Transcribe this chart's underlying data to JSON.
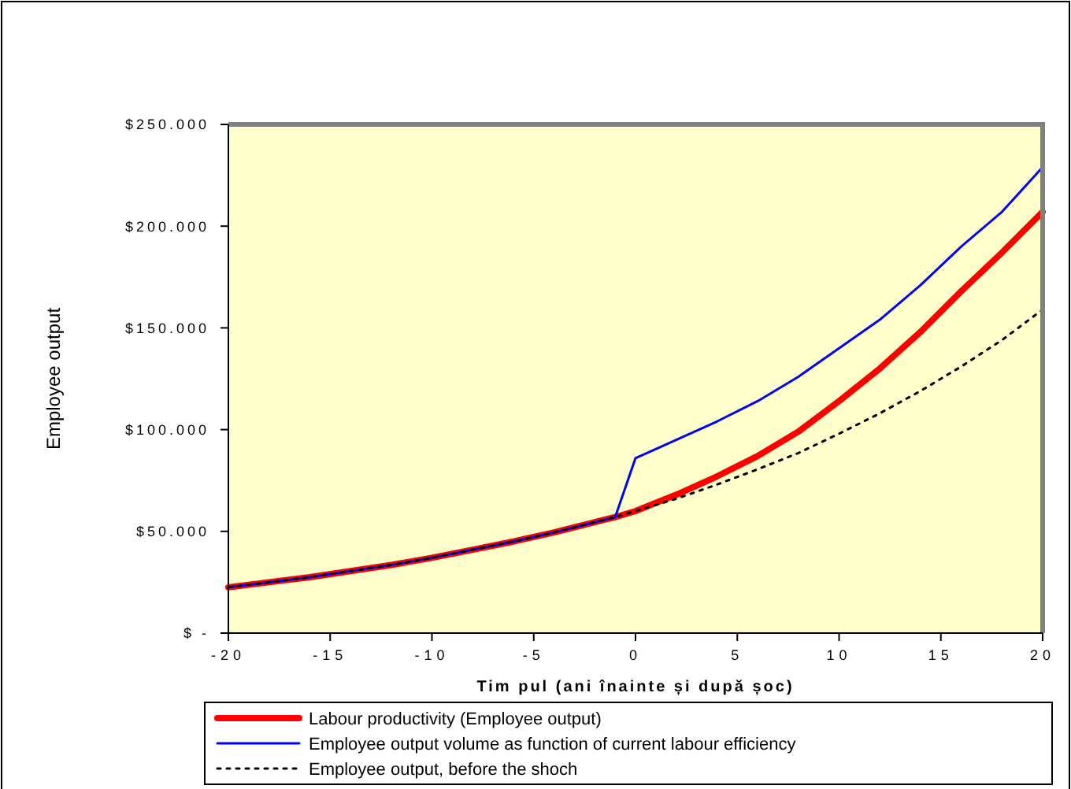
{
  "chart_data": {
    "type": "line",
    "xlabel": "Tim pul (ani înainte și după șoc)",
    "ylabel": "Employee output",
    "xlim": [
      -20,
      20
    ],
    "xticks": [
      -20,
      -15,
      -10,
      -5,
      0,
      5,
      10,
      15,
      20
    ],
    "ylim": [
      0,
      250000
    ],
    "yticks": [
      {
        "value": 0,
        "label": "$ -"
      },
      {
        "value": 50000,
        "label": "$50.000"
      },
      {
        "value": 100000,
        "label": "$100.000"
      },
      {
        "value": 150000,
        "label": "$150.000"
      },
      {
        "value": 200000,
        "label": "$200.000"
      },
      {
        "value": 250000,
        "label": "$250.000"
      }
    ],
    "grid": false,
    "legend": "bottom",
    "series": [
      {
        "name": "Labour productivity (Employee output)",
        "color": "#ff0000",
        "x": [
          -20,
          -18,
          -16,
          -14,
          -12,
          -10,
          -8,
          -6,
          -4,
          -2,
          -1,
          0,
          2,
          4,
          6,
          8,
          10,
          12,
          14,
          16,
          18,
          20
        ],
        "values": [
          22500,
          25000,
          27500,
          30500,
          33500,
          37000,
          41000,
          45000,
          49500,
          54500,
          57000,
          60000,
          68000,
          77000,
          87000,
          99000,
          114000,
          130000,
          148000,
          168000,
          187000,
          207000
        ]
      },
      {
        "name": "Employee output volume as function of current labour efficiency",
        "color": "#0000ff",
        "x": [
          -20,
          -18,
          -16,
          -14,
          -12,
          -10,
          -8,
          -6,
          -4,
          -2,
          -1,
          0,
          2,
          4,
          6,
          8,
          10,
          12,
          14,
          16,
          18,
          20
        ],
        "values": [
          22500,
          25000,
          27500,
          30500,
          33500,
          37000,
          41000,
          45000,
          49500,
          54500,
          57000,
          86000,
          95000,
          104000,
          114000,
          126000,
          140000,
          154000,
          171000,
          190000,
          207000,
          229000
        ]
      },
      {
        "name": "Employee output, before the shoch",
        "color": "#000000",
        "line_style": "dotted",
        "x": [
          -20,
          -18,
          -16,
          -14,
          -12,
          -10,
          -8,
          -6,
          -4,
          -2,
          -1,
          0,
          2,
          4,
          6,
          8,
          10,
          12,
          14,
          16,
          18,
          20
        ],
        "values": [
          22500,
          25000,
          27500,
          30500,
          33500,
          37000,
          41000,
          45000,
          49500,
          54500,
          57000,
          60000,
          66000,
          73000,
          80500,
          88500,
          98000,
          108000,
          119000,
          131000,
          144000,
          159000
        ]
      }
    ]
  }
}
